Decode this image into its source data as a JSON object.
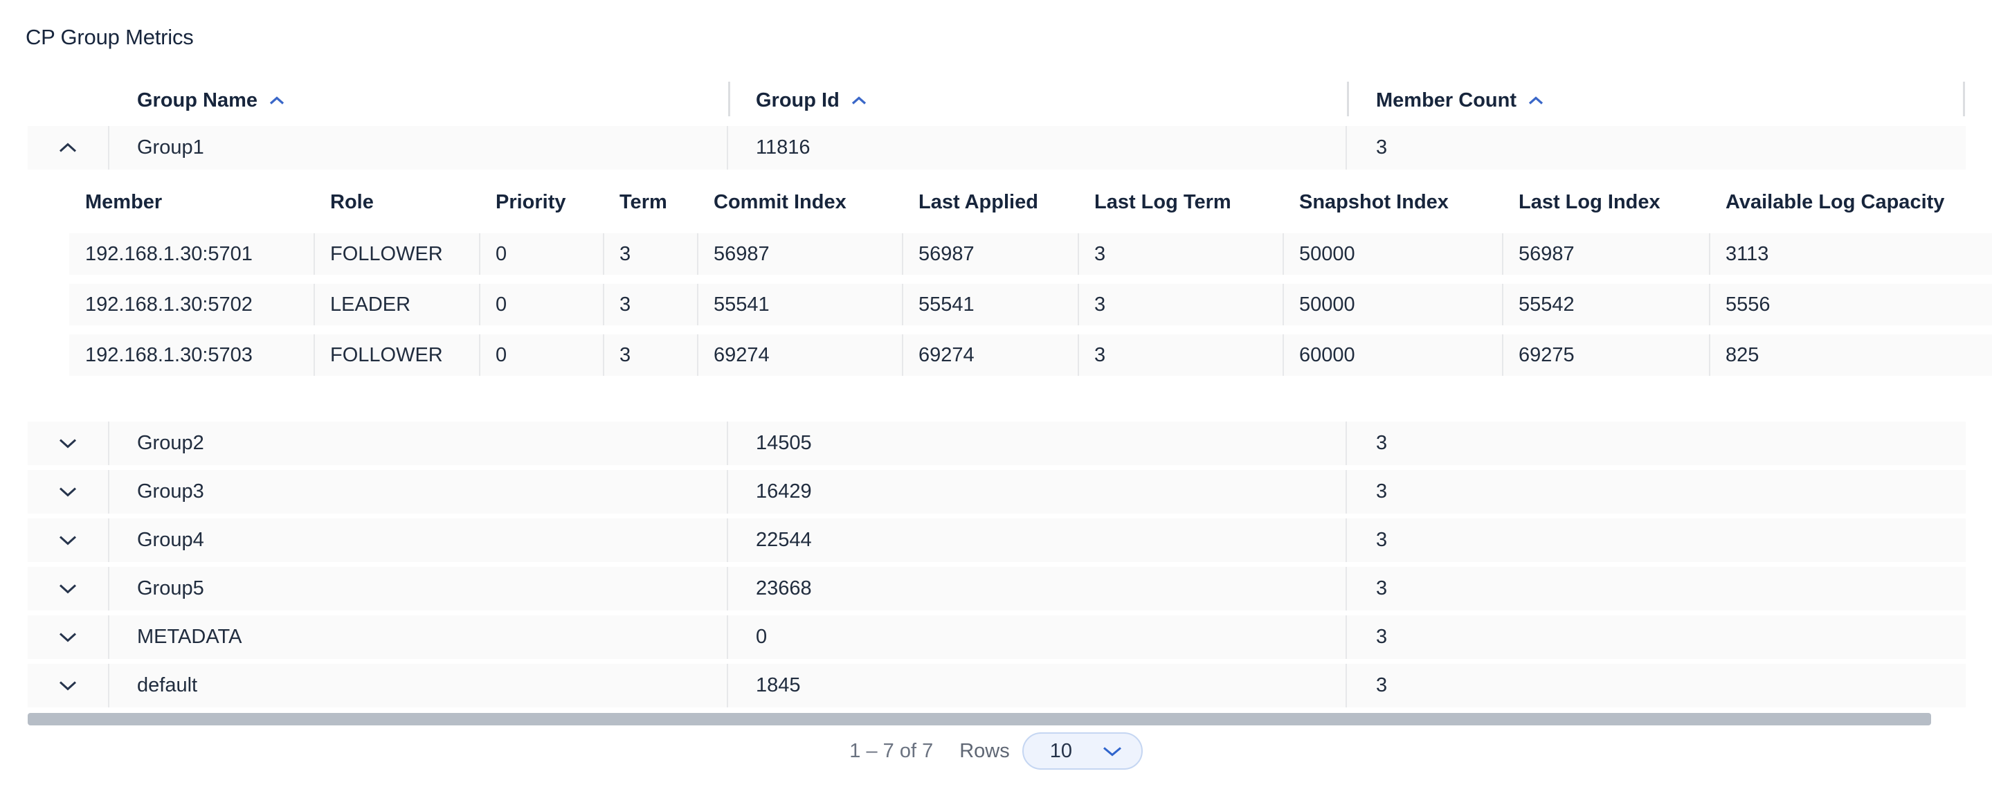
{
  "title": "CP Group Metrics",
  "group_table": {
    "columns": [
      {
        "label": "Group Name",
        "sort_icon": "chevron-up"
      },
      {
        "label": "Group Id",
        "sort_icon": "chevron-up"
      },
      {
        "label": "Member Count",
        "sort_icon": "chevron-up"
      }
    ],
    "rows": [
      {
        "name": "Group1",
        "id": "11816",
        "member_count": "3",
        "expanded": true
      },
      {
        "name": "Group2",
        "id": "14505",
        "member_count": "3",
        "expanded": false
      },
      {
        "name": "Group3",
        "id": "16429",
        "member_count": "3",
        "expanded": false
      },
      {
        "name": "Group4",
        "id": "22544",
        "member_count": "3",
        "expanded": false
      },
      {
        "name": "Group5",
        "id": "23668",
        "member_count": "3",
        "expanded": false
      },
      {
        "name": "METADATA",
        "id": "0",
        "member_count": "3",
        "expanded": false
      },
      {
        "name": "default",
        "id": "1845",
        "member_count": "3",
        "expanded": false
      }
    ]
  },
  "member_table": {
    "columns": [
      "Member",
      "Role",
      "Priority",
      "Term",
      "Commit Index",
      "Last Applied",
      "Last Log Term",
      "Snapshot Index",
      "Last Log Index",
      "Available Log Capacity"
    ],
    "rows": [
      [
        "192.168.1.30:5701",
        "FOLLOWER",
        "0",
        "3",
        "56987",
        "56987",
        "3",
        "50000",
        "56987",
        "3113"
      ],
      [
        "192.168.1.30:5702",
        "LEADER",
        "0",
        "3",
        "55541",
        "55541",
        "3",
        "50000",
        "55542",
        "5556"
      ],
      [
        "192.168.1.30:5703",
        "FOLLOWER",
        "0",
        "3",
        "69274",
        "69274",
        "3",
        "60000",
        "69275",
        "825"
      ]
    ]
  },
  "pagination": {
    "range_text": "1 – 7 of 7",
    "rows_label": "Rows",
    "page_size": "10",
    "page_size_icon": "chevron-down"
  },
  "colors": {
    "accent_blue": "#3a67c8",
    "heading_text": "#17253c",
    "body_text": "#202c3e",
    "row_background": "#fafafa",
    "divider": "#e7e8ea",
    "muted_text": "#6a7280",
    "scrollbar": "#b6bdc6",
    "select_background": "#eef3fd",
    "select_border": "#c5d6f2",
    "chevron_dark": "#26344c"
  }
}
